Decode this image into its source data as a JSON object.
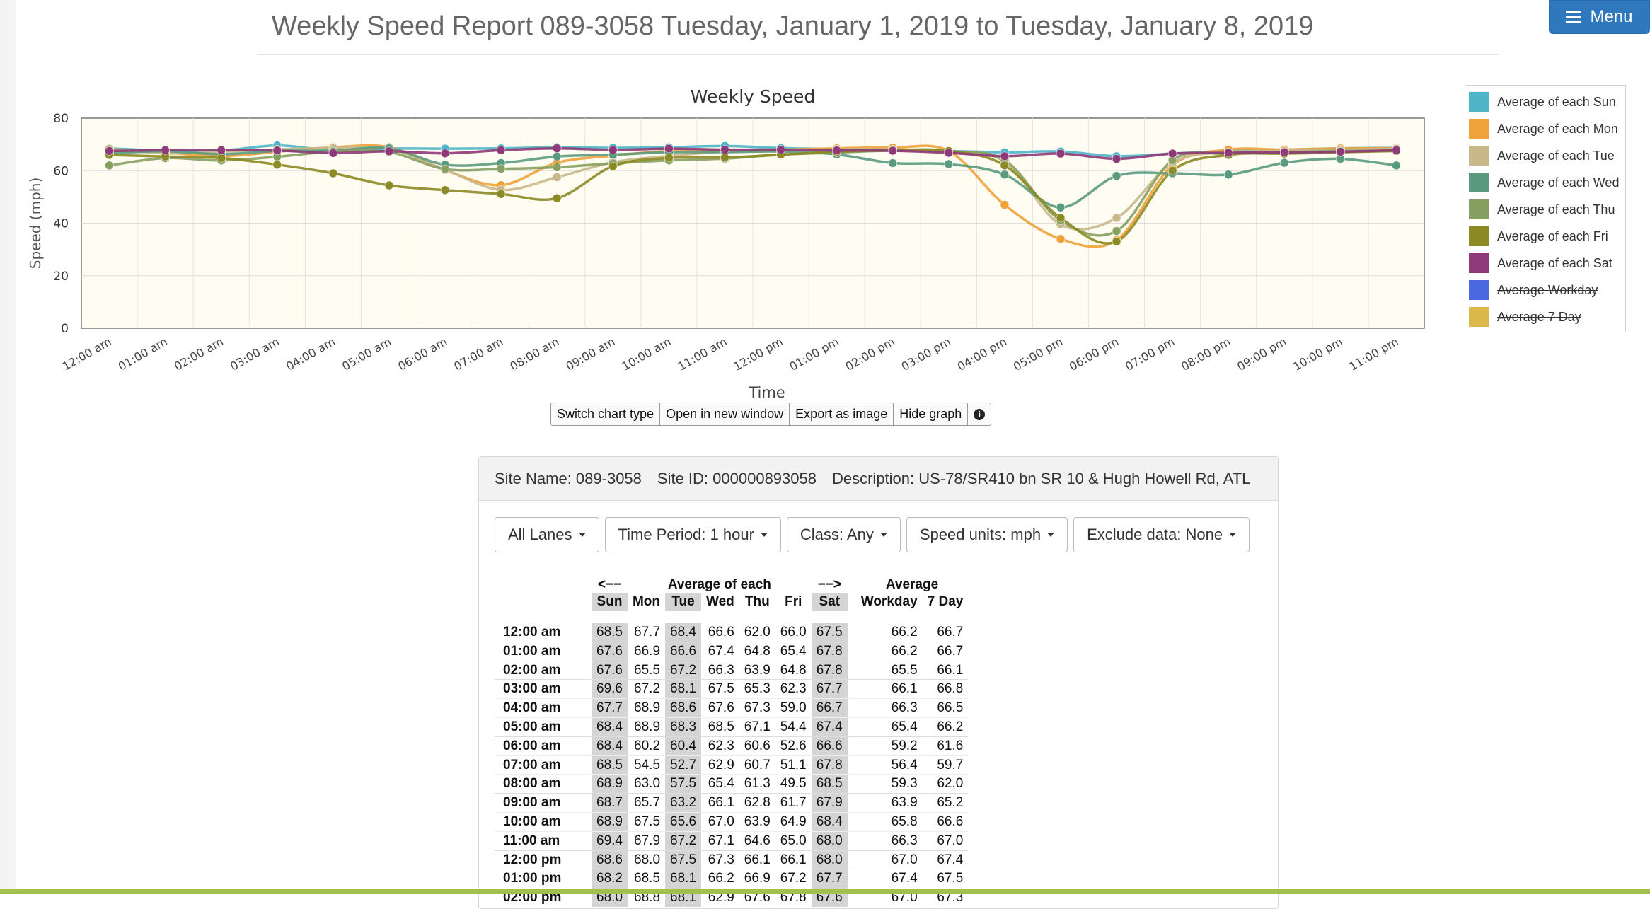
{
  "header": {
    "title": "Weekly Speed Report 089-3058 Tuesday, January 1, 2019 to Tuesday, January 8, 2019",
    "menu_label": "Menu"
  },
  "chart_data": {
    "type": "line",
    "title": "Weekly Speed",
    "xlabel": "Time",
    "ylabel": "Speed (mph)",
    "ylim": [
      0,
      80
    ],
    "yticks": [
      "0",
      "20",
      "40",
      "60",
      "80"
    ],
    "categories": [
      "12:00 am",
      "01:00 am",
      "02:00 am",
      "03:00 am",
      "04:00 am",
      "05:00 am",
      "06:00 am",
      "07:00 am",
      "08:00 am",
      "09:00 am",
      "10:00 am",
      "11:00 am",
      "12:00 pm",
      "01:00 pm",
      "02:00 pm",
      "03:00 pm",
      "04:00 pm",
      "05:00 pm",
      "06:00 pm",
      "07:00 pm",
      "08:00 pm",
      "09:00 pm",
      "10:00 pm",
      "11:00 pm"
    ],
    "grid": true,
    "legend_position": "right",
    "series": [
      {
        "name": "Average of each Sun",
        "color": "#4fb5c8",
        "visible": true,
        "values": [
          68.5,
          67.6,
          67.6,
          69.6,
          67.7,
          68.4,
          68.4,
          68.5,
          68.9,
          68.7,
          68.9,
          69.4,
          68.6,
          68.2,
          68.0,
          67.5,
          67.0,
          67.3,
          65.5,
          66.5,
          67.5,
          68.0,
          68.5,
          68.7
        ]
      },
      {
        "name": "Average of each Mon",
        "color": "#efa23a",
        "visible": true,
        "values": [
          67.7,
          66.9,
          65.5,
          67.2,
          68.9,
          68.9,
          60.2,
          54.5,
          63.0,
          65.7,
          67.5,
          67.9,
          68.0,
          68.5,
          68.8,
          67.5,
          47.0,
          34.0,
          33.5,
          62.0,
          68.0,
          68.0,
          68.5,
          68.5
        ]
      },
      {
        "name": "Average of each Tue",
        "color": "#c8b88a",
        "visible": true,
        "values": [
          68.4,
          66.6,
          67.2,
          68.1,
          68.6,
          68.3,
          60.4,
          52.7,
          57.5,
          63.2,
          65.6,
          67.2,
          67.5,
          68.1,
          68.1,
          67.0,
          63.5,
          39.5,
          42.0,
          63.0,
          67.0,
          67.5,
          68.0,
          68.3
        ]
      },
      {
        "name": "Average of each Wed",
        "color": "#5a9a7e",
        "visible": true,
        "values": [
          66.6,
          67.4,
          66.3,
          67.5,
          67.6,
          68.5,
          62.3,
          62.9,
          65.4,
          66.1,
          67.0,
          67.1,
          67.3,
          66.2,
          62.9,
          62.5,
          58.5,
          46.0,
          58.0,
          59.0,
          58.5,
          63.0,
          64.5,
          62.0
        ]
      },
      {
        "name": "Average of each Thu",
        "color": "#87a062",
        "visible": true,
        "values": [
          62.0,
          64.8,
          63.9,
          65.3,
          67.3,
          67.1,
          60.6,
          60.7,
          61.3,
          62.8,
          63.9,
          64.6,
          66.1,
          66.9,
          67.6,
          67.0,
          64.0,
          41.0,
          37.0,
          64.0,
          66.5,
          67.0,
          67.5,
          67.5
        ]
      },
      {
        "name": "Average of each Fri",
        "color": "#8c8a24",
        "visible": true,
        "values": [
          66.0,
          65.4,
          64.8,
          62.3,
          59.0,
          54.4,
          52.6,
          51.1,
          49.5,
          61.7,
          64.9,
          65.0,
          66.1,
          67.2,
          67.8,
          67.5,
          62.0,
          42.0,
          33.0,
          60.0,
          66.0,
          66.5,
          67.0,
          67.5
        ]
      },
      {
        "name": "Average of each Sat",
        "color": "#8e3a78",
        "visible": true,
        "values": [
          67.5,
          67.8,
          67.8,
          67.7,
          66.7,
          67.4,
          66.6,
          67.8,
          68.5,
          67.9,
          68.4,
          68.0,
          68.0,
          67.7,
          67.6,
          66.8,
          65.5,
          66.5,
          64.5,
          66.5,
          66.8,
          67.0,
          67.2,
          67.8
        ]
      },
      {
        "name": "Average Workday",
        "color": "#4a68e0",
        "visible": false
      },
      {
        "name": "Average 7 Day",
        "color": "#dcb84a",
        "visible": false
      }
    ]
  },
  "chart_toolbar": {
    "switch_type": "Switch chart type",
    "open_window": "Open in new window",
    "export_image": "Export as image",
    "hide_graph": "Hide graph",
    "info": "i"
  },
  "site": {
    "name": "Site Name: 089-3058",
    "id": "Site ID: 000000893058",
    "description": "Description: US-78/SR410 bn SR 10 & Hugh Howell Rd, ATL"
  },
  "filters": {
    "lanes": "All Lanes",
    "time_period": "Time Period: 1 hour",
    "class": "Class: Any",
    "speed_units": "Speed units: mph",
    "exclude": "Exclude data: None"
  },
  "table": {
    "prev_arrow": "<−−",
    "group_label": "Average of each",
    "next_arrow": "−−>",
    "avg_label": "Average",
    "cols": [
      "Sun",
      "Mon",
      "Tue",
      "Wed",
      "Thu",
      "Fri",
      "Sat"
    ],
    "avg_cols": [
      "Workday",
      "7 Day"
    ],
    "rows": [
      {
        "t": "12:00 am",
        "v": [
          "68.5",
          "67.7",
          "68.4",
          "66.6",
          "62.0",
          "66.0",
          "67.5"
        ],
        "a": [
          "66.2",
          "66.7"
        ]
      },
      {
        "t": "01:00 am",
        "v": [
          "67.6",
          "66.9",
          "66.6",
          "67.4",
          "64.8",
          "65.4",
          "67.8"
        ],
        "a": [
          "66.2",
          "66.7"
        ]
      },
      {
        "t": "02:00 am",
        "v": [
          "67.6",
          "65.5",
          "67.2",
          "66.3",
          "63.9",
          "64.8",
          "67.8"
        ],
        "a": [
          "65.5",
          "66.1"
        ]
      },
      {
        "t": "03:00 am",
        "v": [
          "69.6",
          "67.2",
          "68.1",
          "67.5",
          "65.3",
          "62.3",
          "67.7"
        ],
        "a": [
          "66.1",
          "66.8"
        ]
      },
      {
        "t": "04:00 am",
        "v": [
          "67.7",
          "68.9",
          "68.6",
          "67.6",
          "67.3",
          "59.0",
          "66.7"
        ],
        "a": [
          "66.3",
          "66.5"
        ]
      },
      {
        "t": "05:00 am",
        "v": [
          "68.4",
          "68.9",
          "68.3",
          "68.5",
          "67.1",
          "54.4",
          "67.4"
        ],
        "a": [
          "65.4",
          "66.2"
        ]
      },
      {
        "t": "06:00 am",
        "v": [
          "68.4",
          "60.2",
          "60.4",
          "62.3",
          "60.6",
          "52.6",
          "66.6"
        ],
        "a": [
          "59.2",
          "61.6"
        ]
      },
      {
        "t": "07:00 am",
        "v": [
          "68.5",
          "54.5",
          "52.7",
          "62.9",
          "60.7",
          "51.1",
          "67.8"
        ],
        "a": [
          "56.4",
          "59.7"
        ]
      },
      {
        "t": "08:00 am",
        "v": [
          "68.9",
          "63.0",
          "57.5",
          "65.4",
          "61.3",
          "49.5",
          "68.5"
        ],
        "a": [
          "59.3",
          "62.0"
        ]
      },
      {
        "t": "09:00 am",
        "v": [
          "68.7",
          "65.7",
          "63.2",
          "66.1",
          "62.8",
          "61.7",
          "67.9"
        ],
        "a": [
          "63.9",
          "65.2"
        ]
      },
      {
        "t": "10:00 am",
        "v": [
          "68.9",
          "67.5",
          "65.6",
          "67.0",
          "63.9",
          "64.9",
          "68.4"
        ],
        "a": [
          "65.8",
          "66.6"
        ]
      },
      {
        "t": "11:00 am",
        "v": [
          "69.4",
          "67.9",
          "67.2",
          "67.1",
          "64.6",
          "65.0",
          "68.0"
        ],
        "a": [
          "66.3",
          "67.0"
        ]
      },
      {
        "t": "12:00 pm",
        "v": [
          "68.6",
          "68.0",
          "67.5",
          "67.3",
          "66.1",
          "66.1",
          "68.0"
        ],
        "a": [
          "67.0",
          "67.4"
        ]
      },
      {
        "t": "01:00 pm",
        "v": [
          "68.2",
          "68.5",
          "68.1",
          "66.2",
          "66.9",
          "67.2",
          "67.7"
        ],
        "a": [
          "67.4",
          "67.5"
        ]
      },
      {
        "t": "02:00 pm",
        "v": [
          "68.0",
          "68.8",
          "68.1",
          "62.9",
          "67.6",
          "67.8",
          "67.6"
        ],
        "a": [
          "67.0",
          "67.3"
        ]
      }
    ]
  }
}
